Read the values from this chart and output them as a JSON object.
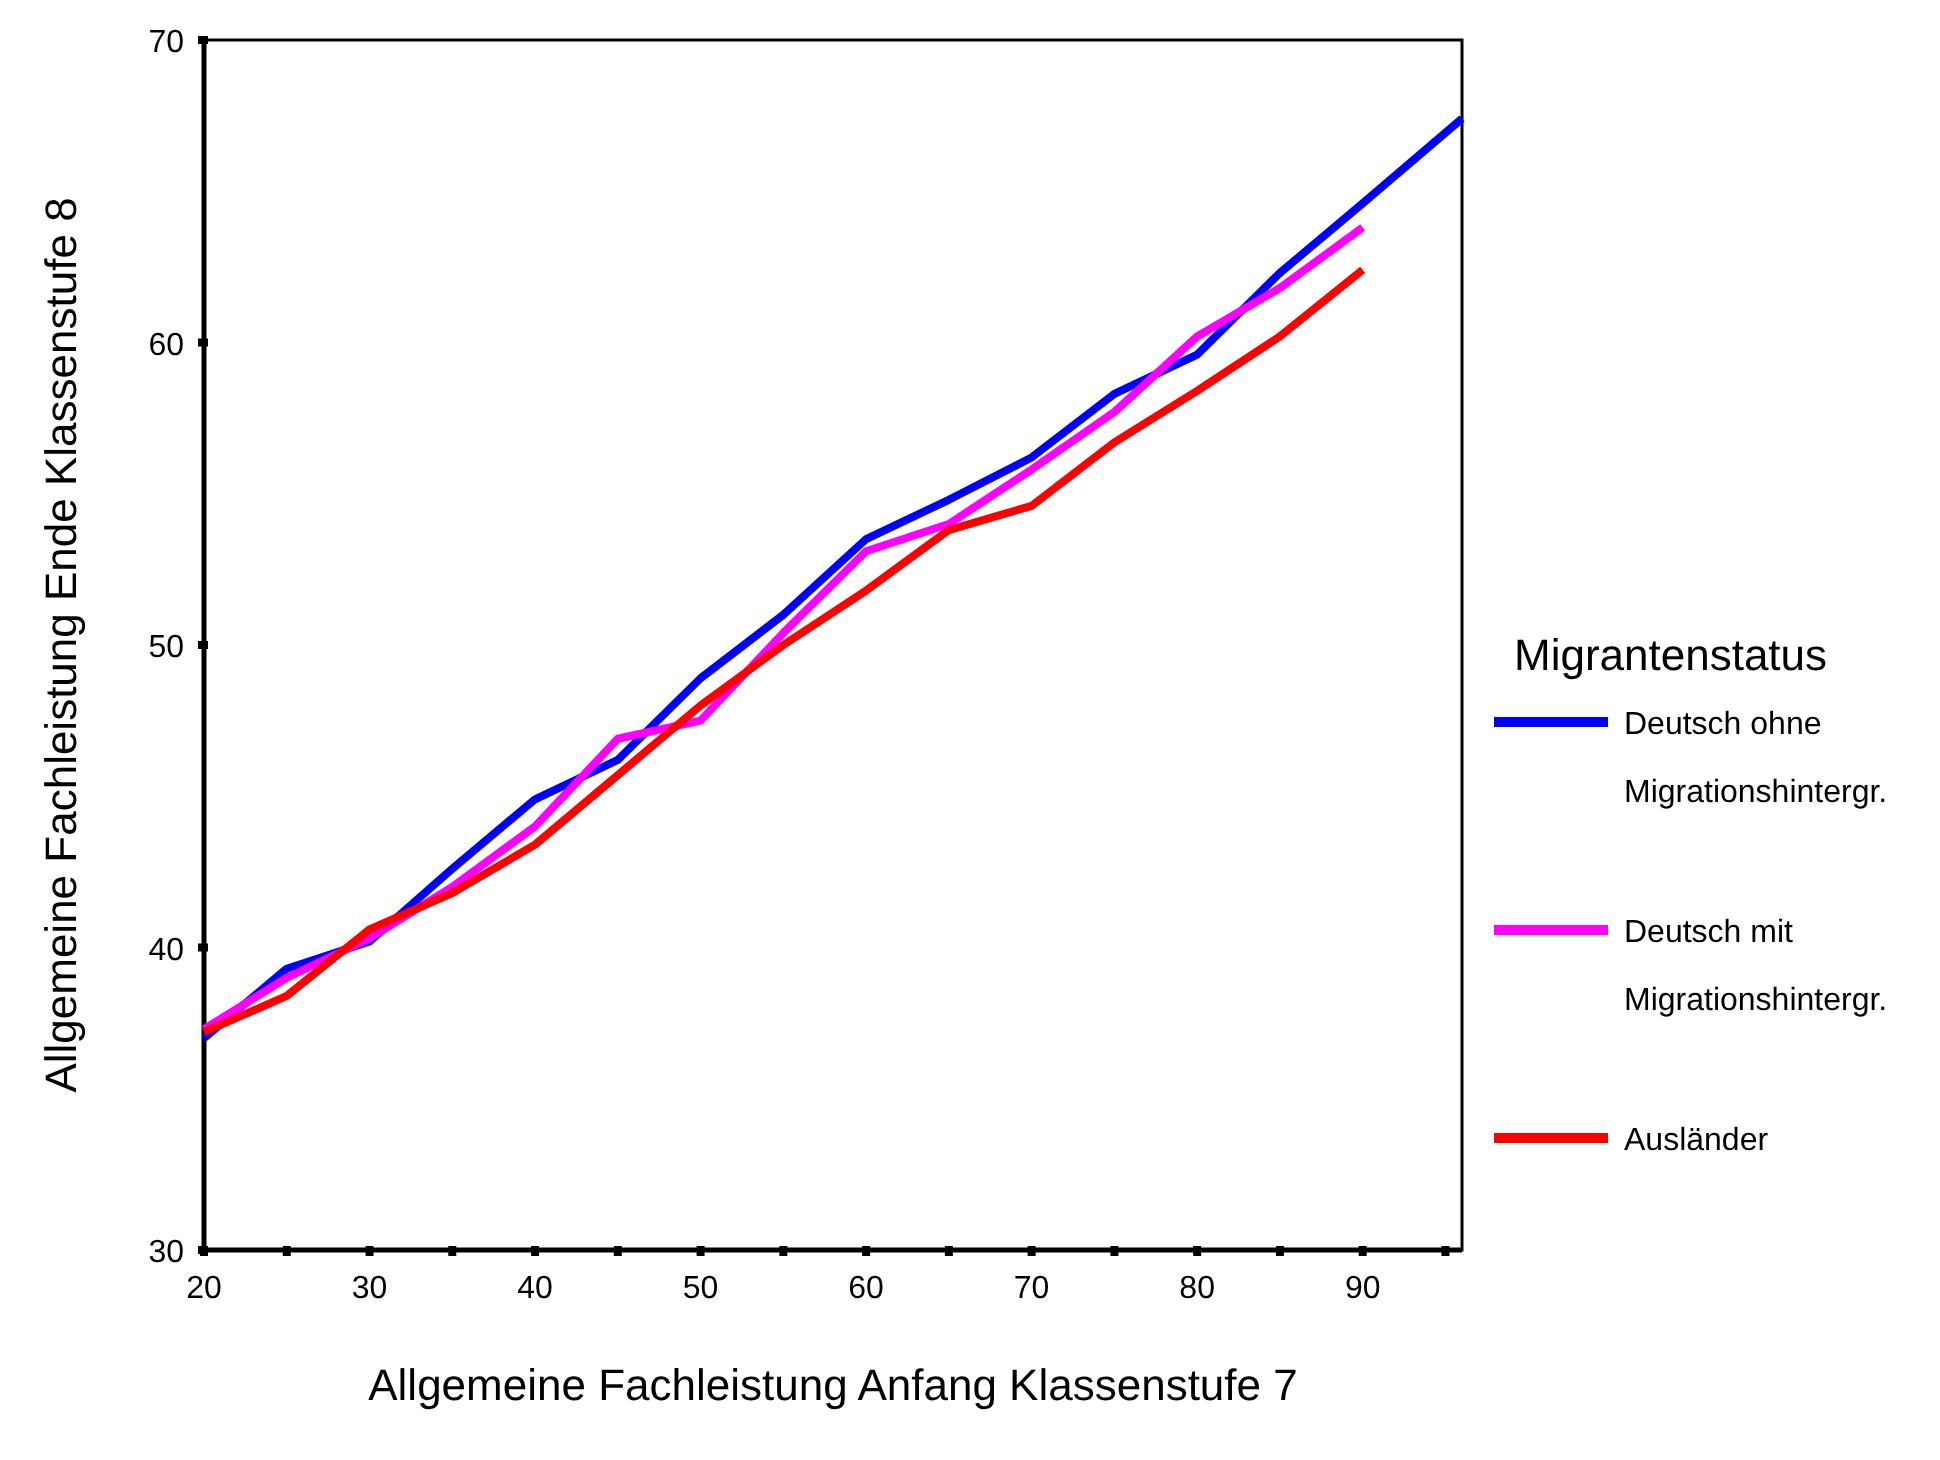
{
  "chart_data": {
    "type": "line",
    "xlabel": "Allgemeine Fachleistung Anfang Klassenstufe 7",
    "ylabel": "Allgemeine Fachleistung Ende Klassenstufe 8",
    "legend_title": "Migrantenstatus",
    "legend": "right",
    "grid": false,
    "marker": "none",
    "line_style": "solid",
    "xlim": [
      20,
      96
    ],
    "ylim": [
      30,
      70
    ],
    "xticks": [
      20,
      {
        "value": 25,
        "label": null
      },
      30,
      {
        "value": 35,
        "label": null
      },
      40,
      {
        "value": 45,
        "label": null
      },
      50,
      {
        "value": 55,
        "label": null
      },
      60,
      {
        "value": 65,
        "label": null
      },
      70,
      {
        "value": 75,
        "label": null
      },
      80,
      {
        "value": 85,
        "label": null
      },
      90,
      {
        "value": 95,
        "label": null
      }
    ],
    "yticks": [
      30,
      40,
      50,
      60,
      70
    ],
    "series": [
      {
        "name": "Deutsch ohne Migrationshintergr.",
        "color": "#0000ff",
        "x": [
          20,
          25,
          30,
          35,
          40,
          45,
          50,
          55,
          60,
          65,
          70,
          75,
          80,
          85,
          90,
          96
        ],
        "values": [
          37.0,
          39.3,
          40.2,
          42.6,
          44.9,
          46.2,
          48.9,
          51.0,
          53.5,
          54.8,
          56.2,
          58.3,
          59.6,
          62.3,
          64.6,
          67.4
        ]
      },
      {
        "name": "Deutsch mit Migrationshintergr.",
        "color": "#ff00ff",
        "x": [
          20,
          25,
          30,
          35,
          40,
          45,
          50,
          55,
          60,
          65,
          70,
          75,
          80,
          85,
          90
        ],
        "values": [
          37.3,
          39.0,
          40.3,
          42.0,
          44.0,
          46.9,
          47.5,
          50.4,
          53.1,
          54.0,
          55.8,
          57.7,
          60.2,
          61.8,
          63.8
        ]
      },
      {
        "name": "Ausländer",
        "color": "#ff0000",
        "x": [
          20,
          25,
          30,
          35,
          40,
          45,
          50,
          55,
          60,
          65,
          70,
          75,
          80,
          85,
          90
        ],
        "values": [
          37.2,
          38.4,
          40.6,
          41.8,
          43.4,
          45.7,
          48.0,
          50.0,
          51.8,
          53.8,
          54.6,
          56.7,
          58.4,
          60.2,
          62.4
        ]
      }
    ]
  }
}
